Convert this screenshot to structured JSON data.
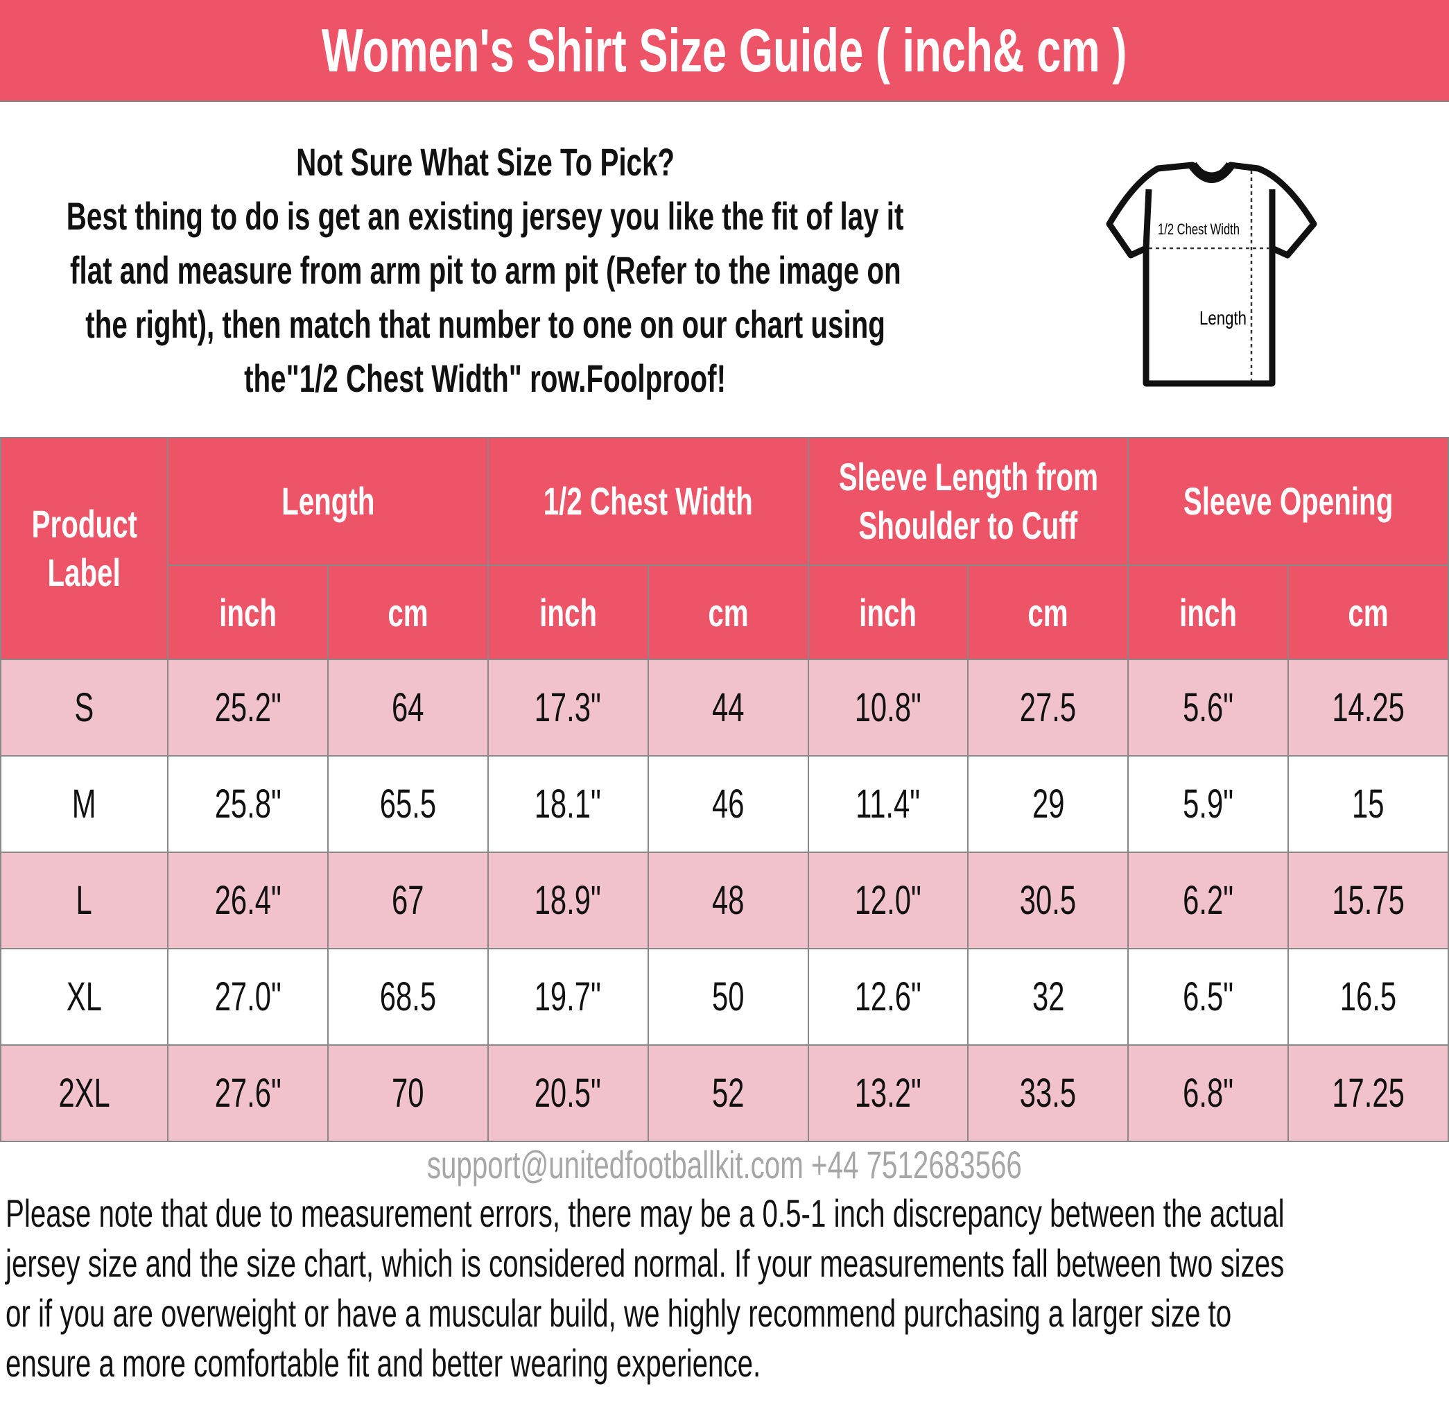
{
  "title": "Women's Shirt Size Guide ( inch& cm )",
  "intro": {
    "lines": [
      "Not Sure What Size To Pick?",
      "Best thing to do is get an existing jersey you like the fit of lay it",
      "flat and measure from arm pit to arm pit (Refer to the image on",
      "the right), then match that number to one on our chart using",
      "the\"1/2 Chest Width\" row.Foolproof!"
    ]
  },
  "diagram": {
    "chest_label": "1/2 Chest Width",
    "length_label": "Length",
    "icon": "tshirt-icon"
  },
  "table": {
    "label_header": [
      "Product",
      "Label"
    ],
    "groups": [
      "Length",
      "1/2 Chest Width",
      "Sleeve Length from",
      "Shoulder to Cuff",
      "Sleeve Opening"
    ],
    "units": [
      "inch",
      "cm",
      "inch",
      "cm",
      "inch",
      "cm",
      "inch",
      "cm"
    ],
    "rows": [
      [
        "S",
        "25.2\"",
        "64",
        "17.3\"",
        "44",
        "10.8\"",
        "27.5",
        "5.6\"",
        "14.25"
      ],
      [
        "M",
        "25.8\"",
        "65.5",
        "18.1\"",
        "46",
        "11.4\"",
        "29",
        "5.9\"",
        "15"
      ],
      [
        "L",
        "26.4\"",
        "67",
        "18.9\"",
        "48",
        "12.0\"",
        "30.5",
        "6.2\"",
        "15.75"
      ],
      [
        "XL",
        "27.0\"",
        "68.5",
        "19.7\"",
        "50",
        "12.6\"",
        "32",
        "6.5\"",
        "16.5"
      ],
      [
        "2XL",
        "27.6\"",
        "70",
        "20.5\"",
        "52",
        "13.2\"",
        "33.5",
        "6.8\"",
        "17.25"
      ]
    ]
  },
  "watermark": "support@unitedfootballkit.com +44 7512683566",
  "note": {
    "lines": [
      "Please note that due to measurement errors, there may be a 0.5-1 inch discrepancy between the actual",
      "jersey size and the size chart, which is considered normal. If your measurements fall between two sizes",
      "or if you are overweight or have a muscular build, we highly recommend purchasing a larger size to",
      "ensure a more comfortable fit and better wearing experience."
    ]
  },
  "colors": {
    "header": "#EE5468",
    "pink_row": "#F2C2CC",
    "grid": "#888888"
  }
}
